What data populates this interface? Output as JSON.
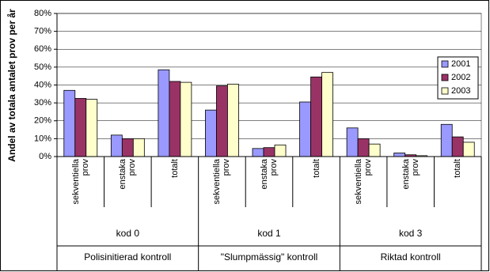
{
  "chart_data": {
    "type": "bar",
    "ylabel": "Andel av totala antalet prov per år",
    "categories": [
      "sekventiella prov",
      "enstaka prov",
      "totalt",
      "sekventiella prov",
      "enstaka prov",
      "totalt",
      "sekventiella prov",
      "enstaka prov",
      "totalt"
    ],
    "category_groups": [
      "kod 0",
      "kod 1",
      "kod 3"
    ],
    "category_supergroups": [
      "Polisinitierad kontroll",
      "\"Slumpmässig\" kontroll",
      "Riktad kontroll"
    ],
    "series": [
      {
        "name": "2001",
        "color": "#9999ff",
        "values": [
          37,
          12,
          48.5,
          26,
          4.5,
          30.5,
          16,
          2,
          18
        ]
      },
      {
        "name": "2002",
        "color": "#993366",
        "values": [
          32.5,
          10,
          42,
          39.5,
          5,
          44.5,
          10,
          1,
          11
        ]
      },
      {
        "name": "2003",
        "color": "#ffffcc",
        "values": [
          32,
          10,
          41.5,
          40.5,
          6.5,
          47,
          7,
          0.5,
          8
        ]
      }
    ],
    "ylim": [
      0,
      80
    ],
    "yticks": [
      {
        "value": 0,
        "label": "0%"
      },
      {
        "value": 10,
        "label": "10%"
      },
      {
        "value": 20,
        "label": "20%"
      },
      {
        "value": 30,
        "label": "30%"
      },
      {
        "value": 40,
        "label": "40%"
      },
      {
        "value": 50,
        "label": "50%"
      },
      {
        "value": 60,
        "label": "60%"
      },
      {
        "value": 70,
        "label": "70%"
      },
      {
        "value": 80,
        "label": "80%"
      }
    ],
    "grid": true,
    "legend": "right"
  }
}
